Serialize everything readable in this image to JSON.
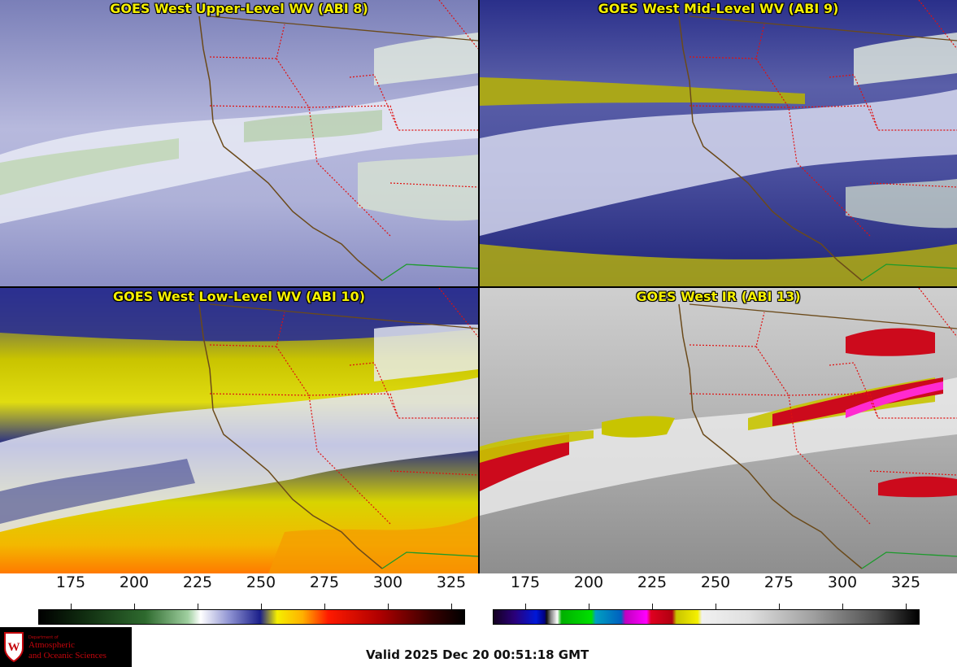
{
  "panels": [
    {
      "id": "ul",
      "title": "GOES West Upper-Level WV (ABI 8)"
    },
    {
      "id": "ml",
      "title": "GOES West Mid-Level WV (ABI 9)"
    },
    {
      "id": "ll",
      "title": "GOES West Low-Level WV (ABI 10)"
    },
    {
      "id": "ir",
      "title": "GOES West IR (ABI 13)"
    }
  ],
  "colorbars": {
    "wv": {
      "ticks": [
        "175",
        "200",
        "225",
        "250",
        "275",
        "300",
        "325"
      ]
    },
    "ir": {
      "ticks": [
        "175",
        "200",
        "225",
        "250",
        "275",
        "300",
        "325"
      ]
    }
  },
  "logo": {
    "dept": "Department of",
    "line1": "Atmospheric",
    "line2": "and Oceanic Sciences"
  },
  "valid_time": "Valid 2025 Dec 20 00:51:18 GMT",
  "colors": {
    "title_yellow": "#f5f000",
    "state_border": "#e01010",
    "coast": "#6b4a1a",
    "uw_red": "#c5050c"
  }
}
